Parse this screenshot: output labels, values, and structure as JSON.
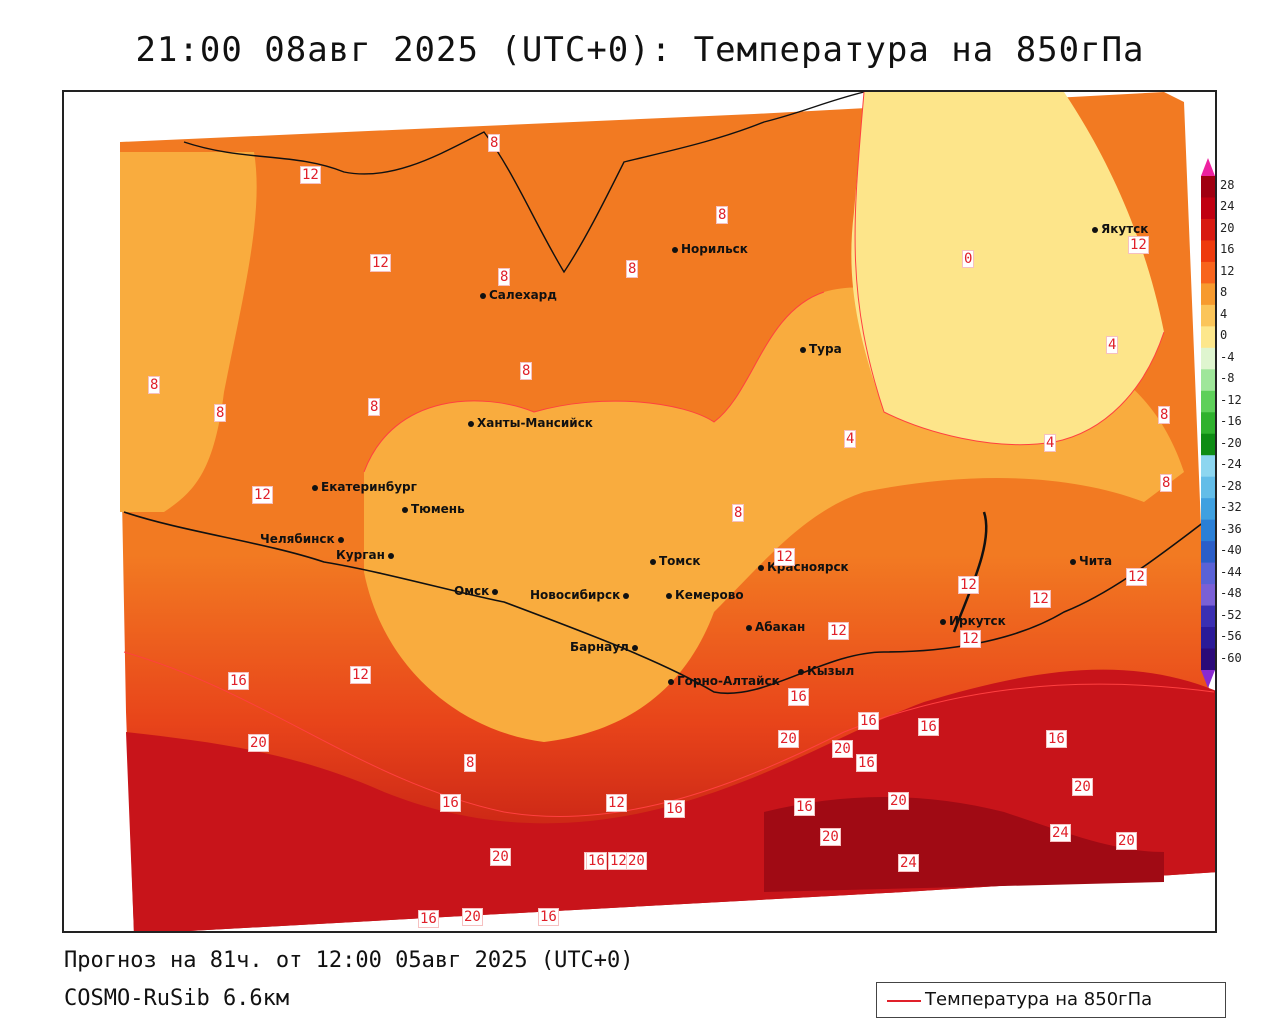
{
  "title": "21:00 08авг 2025 (UTC+0): Температура на 850гПа",
  "footer": {
    "forecast": "Прогноз на 81ч. от 12:00 05авг 2025 (UTC+0)",
    "model": "COSMO-RuSib 6.6км"
  },
  "legend": {
    "label": "Температура на 850гПа",
    "color": "#e0202a"
  },
  "cities": [
    {
      "name": "Салехард"
    },
    {
      "name": "Норильск"
    },
    {
      "name": "Тура"
    },
    {
      "name": "Якутск"
    },
    {
      "name": "Ханты-Мансийск"
    },
    {
      "name": "Екатеринбург"
    },
    {
      "name": "Тюмень"
    },
    {
      "name": "Челябинск"
    },
    {
      "name": "Курган"
    },
    {
      "name": "Омск"
    },
    {
      "name": "Новосибирск"
    },
    {
      "name": "Томск"
    },
    {
      "name": "Кемерово"
    },
    {
      "name": "Барнаул"
    },
    {
      "name": "Красноярск"
    },
    {
      "name": "Абакан"
    },
    {
      "name": "Кызыл"
    },
    {
      "name": "Горно-Алтайск"
    },
    {
      "name": "Иркутск"
    },
    {
      "name": "Чита"
    }
  ],
  "isolines": [
    "12",
    "8",
    "12",
    "8",
    "8",
    "8",
    "8",
    "0",
    "12",
    "4",
    "8",
    "8",
    "8",
    "4",
    "8",
    "4",
    "12",
    "8",
    "8",
    "12",
    "12",
    "12",
    "12",
    "12",
    "12",
    "12",
    "16",
    "12",
    "16",
    "16",
    "16",
    "16",
    "16",
    "8",
    "16",
    "20",
    "20",
    "16",
    "12",
    "16",
    "16",
    "20",
    "20",
    "20",
    "20",
    "24",
    "20",
    "16",
    "20",
    "20",
    "24",
    "16",
    "20",
    "16"
  ],
  "colorbar": {
    "ticks": [
      "28",
      "24",
      "20",
      "16",
      "12",
      "8",
      "4",
      "0",
      "-4",
      "-8",
      "-12",
      "-16",
      "-20",
      "-24",
      "-28",
      "-32",
      "-36",
      "-40",
      "-44",
      "-48",
      "-52",
      "-56",
      "-60"
    ],
    "colors": [
      "#a00010",
      "#c00010",
      "#d81a10",
      "#ee3a0c",
      "#f8641c",
      "#f79a2e",
      "#fbc55a",
      "#fde78c",
      "#dff5cf",
      "#9fe69a",
      "#5ed05a",
      "#2fb22e",
      "#0e8c14",
      "#8dd6f0",
      "#63bde8",
      "#3fa0e0",
      "#2a7fd6",
      "#2a5ec8",
      "#5a62d6",
      "#7a60d6",
      "#3a2fb2",
      "#2a1a98",
      "#2a0a78"
    ],
    "top_arrow_color": "#ee22a0",
    "bottom_arrow_color": "#8a2ad0"
  }
}
